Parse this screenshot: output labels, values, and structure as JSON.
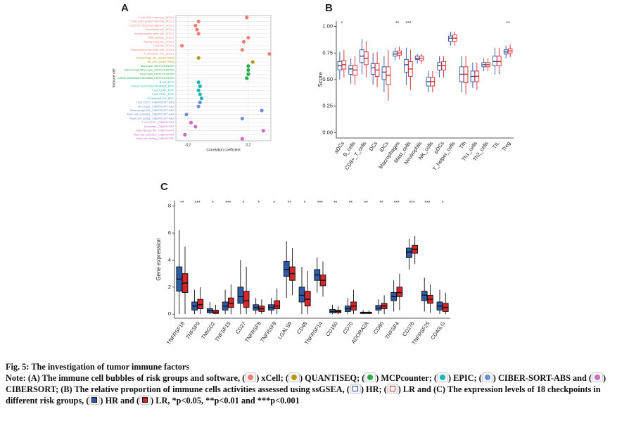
{
  "chart_data": [
    {
      "type": "dot",
      "panel_label": "A",
      "x_label": "Correlation coefficient",
      "y_label": "Immune cell",
      "categories": [
        "T cell CD4+ memory_XCELL",
        "T cell CD4+ central memory_XCELL",
        "Common myeloid progenitor_XCELL",
        "Endothelial cell_XCELL",
        "Hematopoietic stem cell_XCELL",
        "Macrophage_XCELL",
        "Macrophage M1_XCELL",
        "T cell NK_XCELL",
        "Plasmacytoid dendritic cell_XCELL",
        "T cell CD4+ Th1_XCELL",
        "Macrophage M1_QUANTISEQ",
        "NK cell_QUANTISEQ",
        "Monocyte_MCPCOUNTER",
        "Macrophage/Monocyte_MCPCOUNTER",
        "Neutrophil_MCPCOUNTER",
        "Cancer associated fibroblast_MCPCOUNTER",
        "B cell_EPIC",
        "Cancer associated fibroblast_EPIC",
        "T cell CD4+_EPIC",
        "T cell CD8+_EPIC",
        "Endothelial cell_EPIC",
        "T cell CD8+_CIBERSORT-ABS",
        "Monocyte_CIBERSORT-ABS",
        "Macrophage M0_CIBERSORT-ABS",
        "Mast cell activated_CIBERSORT-ABS",
        "Mast cell resting_CIBERSORT-ABS",
        "T cell CD8+_CIBERSORT",
        "Monocyte_CIBERSORT",
        "Macrophage M0_CIBERSORT",
        "Mast cell activated_CIBERSORT",
        "Mast cell resting_CIBERSORT"
      ],
      "values": [
        0.19,
        -0.13,
        -0.15,
        -0.14,
        -0.13,
        0.2,
        0.17,
        -0.24,
        0.16,
        0.34,
        -0.13,
        0.23,
        0.2,
        0.2,
        0.2,
        0.19,
        -0.13,
        -0.12,
        -0.13,
        -0.12,
        -0.11,
        -0.12,
        -0.13,
        0.29,
        -0.21,
        0.16,
        -0.18,
        -0.15,
        0.3,
        -0.22,
        0.16
      ],
      "colors": [
        "#ee7f74",
        "#ee7f74",
        "#ee7f74",
        "#ee7f74",
        "#ee7f74",
        "#ee7f74",
        "#ee7f74",
        "#ee7f74",
        "#ee7f74",
        "#ee7f74",
        "#b39a1e",
        "#b39a1e",
        "#27ae4a",
        "#27ae4a",
        "#27ae4a",
        "#27ae4a",
        "#1db4b8",
        "#1db4b8",
        "#1db4b8",
        "#1db4b8",
        "#1db4b8",
        "#6b8fd2",
        "#6b8fd2",
        "#6b8fd2",
        "#6b8fd2",
        "#6b8fd2",
        "#c96fc1",
        "#c96fc1",
        "#c96fc1",
        "#c96fc1",
        "#c96fc1"
      ],
      "xlim": [
        -0.28,
        0.35
      ],
      "xticks": [
        -0.2,
        0.2
      ],
      "grid": true
    },
    {
      "type": "box",
      "panel_label": "B",
      "y_label": "Score",
      "categories": [
        "aDCs",
        "B_cells",
        "CD8+_T_cells",
        "DCs",
        "iDCs",
        "Macrophages",
        "Mast_cells",
        "Neutrophils",
        "NK_cells",
        "pDCs",
        "T_helper_cells",
        "Tfh",
        "Th1_cells",
        "Th2_cells",
        "TIL",
        "Treg"
      ],
      "annotations": [
        "*",
        null,
        null,
        null,
        null,
        "**",
        "***",
        null,
        null,
        null,
        null,
        null,
        null,
        null,
        null,
        "**"
      ],
      "series": [
        {
          "color": "#2c4f9e",
          "fill": "#ffffff",
          "values": [
            [
              0.5,
              0.59,
              0.63,
              0.67,
              0.76
            ],
            [
              0.46,
              0.55,
              0.6,
              0.63,
              0.7
            ],
            [
              0.55,
              0.66,
              0.72,
              0.78,
              0.88
            ],
            [
              0.45,
              0.55,
              0.61,
              0.65,
              0.75
            ],
            [
              0.38,
              0.5,
              0.57,
              0.62,
              0.72
            ],
            [
              0.68,
              0.72,
              0.74,
              0.76,
              0.8
            ],
            [
              0.45,
              0.57,
              0.64,
              0.69,
              0.8
            ],
            [
              0.65,
              0.69,
              0.7,
              0.72,
              0.74
            ],
            [
              0.38,
              0.44,
              0.48,
              0.52,
              0.58
            ],
            [
              0.52,
              0.59,
              0.63,
              0.66,
              0.72
            ],
            [
              0.82,
              0.86,
              0.89,
              0.91,
              0.95
            ],
            [
              0.38,
              0.48,
              0.55,
              0.62,
              0.72
            ],
            [
              0.42,
              0.48,
              0.53,
              0.58,
              0.66
            ],
            [
              0.58,
              0.62,
              0.64,
              0.66,
              0.7
            ],
            [
              0.55,
              0.63,
              0.67,
              0.72,
              0.8
            ],
            [
              0.7,
              0.74,
              0.76,
              0.78,
              0.82
            ]
          ]
        },
        {
          "color": "#d8252b",
          "fill": "#ffffff",
          "values": [
            [
              0.52,
              0.6,
              0.64,
              0.68,
              0.78
            ],
            [
              0.45,
              0.54,
              0.59,
              0.63,
              0.72
            ],
            [
              0.52,
              0.64,
              0.7,
              0.76,
              0.86
            ],
            [
              0.43,
              0.53,
              0.59,
              0.65,
              0.76
            ],
            [
              0.3,
              0.45,
              0.54,
              0.62,
              0.78
            ],
            [
              0.69,
              0.73,
              0.75,
              0.77,
              0.81
            ],
            [
              0.4,
              0.53,
              0.6,
              0.67,
              0.78
            ],
            [
              0.65,
              0.68,
              0.7,
              0.72,
              0.74
            ],
            [
              0.38,
              0.44,
              0.48,
              0.52,
              0.58
            ],
            [
              0.52,
              0.59,
              0.63,
              0.67,
              0.72
            ],
            [
              0.82,
              0.86,
              0.89,
              0.92,
              0.95
            ],
            [
              0.36,
              0.47,
              0.55,
              0.62,
              0.72
            ],
            [
              0.4,
              0.48,
              0.53,
              0.58,
              0.66
            ],
            [
              0.58,
              0.62,
              0.64,
              0.66,
              0.7
            ],
            [
              0.55,
              0.63,
              0.67,
              0.72,
              0.8
            ],
            [
              0.71,
              0.75,
              0.77,
              0.79,
              0.83
            ]
          ]
        }
      ],
      "ylim": [
        -0.05,
        1.05
      ],
      "yticks": [
        {
          "value": 0,
          "label": "0.00"
        },
        {
          "value": 0.25,
          "label": "0.25"
        },
        {
          "value": 0.5,
          "label": "0.50"
        },
        {
          "value": 0.75,
          "label": "0.75"
        },
        {
          "value": 1,
          "label": "1.00"
        }
      ]
    },
    {
      "type": "box",
      "panel_label": "C",
      "y_label": "Gene expression",
      "categories": [
        "TNFRSF18",
        "TNFSF9",
        "TMIGD2",
        "TNFSF15",
        "CD27",
        "TNFRSF8",
        "TNFRSF9",
        "LGALS9",
        "CD48",
        "TNFRSF14",
        "CD160",
        "CD70",
        "ADORA2A",
        "CD80",
        "TNFSF4",
        "CD276",
        "TNFRSF25",
        "CD40LG"
      ],
      "annotations": [
        "**",
        "***",
        "*",
        "***",
        "*",
        "*",
        "*",
        "**",
        "*",
        "***",
        "**",
        "**",
        "**",
        "**",
        "***",
        "***",
        "***",
        "*"
      ],
      "series": [
        {
          "color": "#111111",
          "fill": "#2d5ba8",
          "values": [
            [
              0,
              1.7,
              2.6,
              3.5,
              6.2
            ],
            [
              0,
              0.3,
              0.6,
              0.9,
              1.8
            ],
            [
              0,
              0.1,
              0.25,
              0.4,
              0.9
            ],
            [
              0,
              0.3,
              0.6,
              0.9,
              1.8
            ],
            [
              0,
              0.8,
              1.3,
              2,
              4
            ],
            [
              0,
              0.3,
              0.5,
              0.7,
              1.2
            ],
            [
              0,
              0.3,
              0.5,
              0.7,
              1.2
            ],
            [
              1.2,
              2.8,
              3.3,
              3.9,
              5.4
            ],
            [
              0,
              0.9,
              1.4,
              2,
              3.5
            ],
            [
              1.6,
              2.5,
              2.9,
              3.3,
              4.2
            ],
            [
              0,
              0.1,
              0.2,
              0.35,
              0.7
            ],
            [
              0,
              0.2,
              0.4,
              0.6,
              1.2
            ],
            [
              0,
              0.05,
              0.1,
              0.15,
              0.3
            ],
            [
              0,
              0.3,
              0.45,
              0.65,
              1.1
            ],
            [
              0.2,
              1,
              1.3,
              1.6,
              2.5
            ],
            [
              3.3,
              4.2,
              4.6,
              4.9,
              5.6
            ],
            [
              0.2,
              1,
              1.4,
              1.7,
              2.7
            ],
            [
              0,
              0.3,
              0.6,
              0.9,
              1.8
            ]
          ]
        },
        {
          "color": "#111111",
          "fill": "#d8252b",
          "values": [
            [
              0,
              1.6,
              2.3,
              3,
              5
            ],
            [
              0,
              0.4,
              0.7,
              1.1,
              2
            ],
            [
              0,
              0.05,
              0.15,
              0.3,
              0.7
            ],
            [
              0,
              0.5,
              0.8,
              1.2,
              2.2
            ],
            [
              0,
              0.5,
              1,
              1.7,
              3.5
            ],
            [
              0,
              0.2,
              0.4,
              0.6,
              1.1
            ],
            [
              0,
              0.4,
              0.6,
              1,
              1.9
            ],
            [
              1.4,
              2.5,
              3,
              3.5,
              4.9
            ],
            [
              0,
              0.6,
              1.1,
              1.7,
              3.2
            ],
            [
              1.3,
              2.1,
              2.5,
              2.9,
              3.9
            ],
            [
              0,
              0.1,
              0.2,
              0.3,
              0.6
            ],
            [
              0,
              0.3,
              0.6,
              0.9,
              1.8
            ],
            [
              0,
              0.05,
              0.1,
              0.15,
              0.3
            ],
            [
              0,
              0.4,
              0.6,
              0.8,
              1.4
            ],
            [
              0.3,
              1.3,
              1.6,
              2,
              3
            ],
            [
              3.7,
              4.5,
              4.8,
              5.1,
              5.8
            ],
            [
              0.1,
              0.8,
              1.1,
              1.4,
              2.2
            ],
            [
              0,
              0.2,
              0.5,
              0.8,
              1.6
            ]
          ]
        }
      ],
      "ylim": [
        -0.3,
        8.4
      ],
      "yticks": [
        0,
        2,
        4,
        6,
        8
      ]
    }
  ],
  "caption": {
    "title": "Fig. 5: The investigation of tumor immune factors",
    "parts": [
      "Note: (A) The immune cell bubbles of risk groups and software, (",
      ") xCell; (",
      ") QUANTISEQ; (",
      ") MCPcounter; (",
      ") EPIC; (",
      ") CIBER-SORT-ABS and (",
      ") CIBERSORT; (B) The relative proportion of immune cells activities assessed using ssGSEA, (",
      ") HR; (",
      ") LR and (C) The expression levels of 18 checkpoints in different risk groups, (",
      ") HR and (",
      ") LR, *p<0.05, **p<0.01 and ***p<0.001"
    ]
  }
}
